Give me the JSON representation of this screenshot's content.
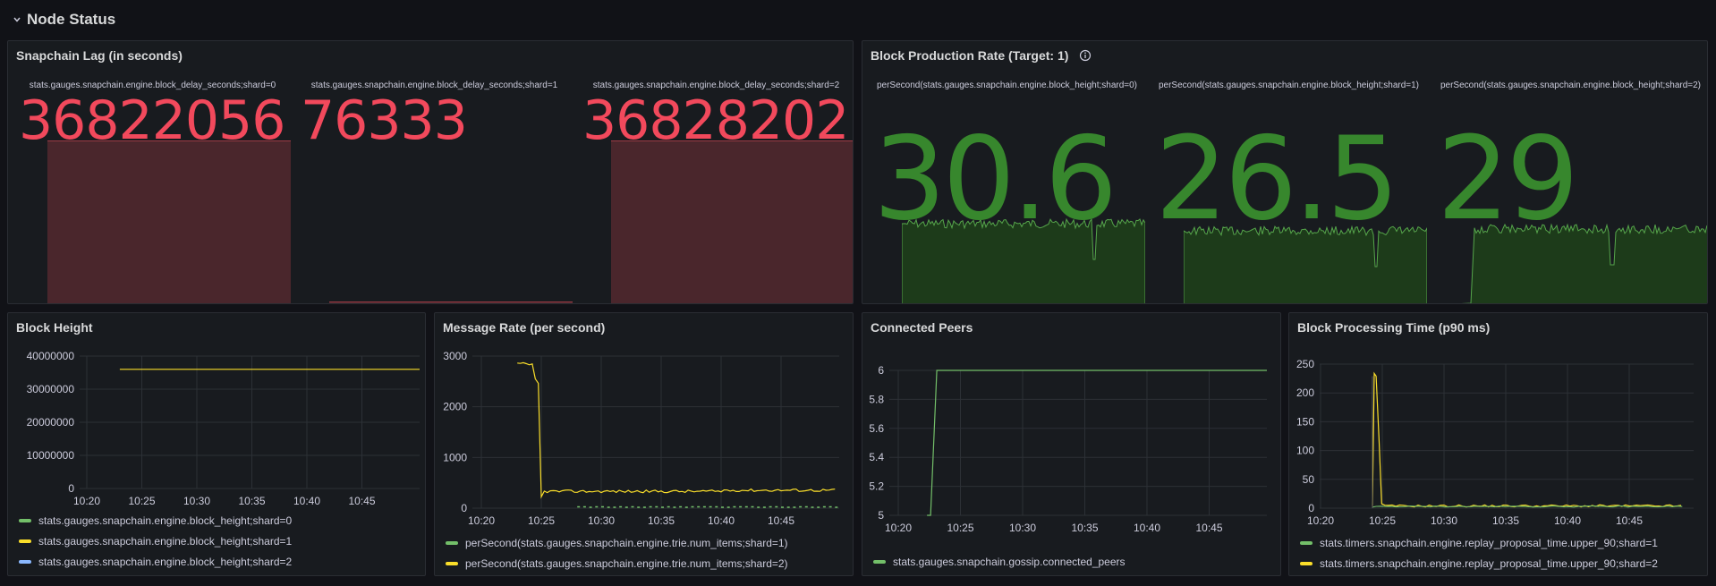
{
  "row": {
    "title": "Node Status"
  },
  "colors": {
    "red": "#f2495c",
    "green": "#73bf69",
    "dark_green": "#37872d",
    "yellow": "#fade2a",
    "blue": "#8ab8ff"
  },
  "lag_panel": {
    "title": "Snapchain Lag (in seconds)",
    "stats": [
      {
        "label": "stats.gauges.snapchain.engine.block_delay_seconds;shard=0",
        "value": "36822056",
        "fill": 1.0
      },
      {
        "label": "stats.gauges.snapchain.engine.block_delay_seconds;shard=1",
        "value": "76333",
        "fill": 0.002
      },
      {
        "label": "stats.gauges.snapchain.engine.block_delay_seconds;shard=2",
        "value": "36828202",
        "fill": 1.0
      }
    ]
  },
  "block_rate_panel": {
    "title": "Block Production Rate (Target: 1)",
    "info_icon": "info-icon",
    "stats": [
      {
        "label": "perSecond(stats.gauges.snapchain.engine.block_height;shard=0)",
        "value": "30.6"
      },
      {
        "label": "perSecond(stats.gauges.snapchain.engine.block_height;shard=1)",
        "value": "26.5"
      },
      {
        "label": "perSecond(stats.gauges.snapchain.engine.block_height;shard=2)",
        "value": "29"
      }
    ]
  },
  "block_height_panel": {
    "title": "Block Height",
    "chart_data": {
      "type": "line",
      "title": "Block Height",
      "yticks": [
        "40000000",
        "30000000",
        "20000000",
        "10000000",
        "0"
      ],
      "ylim": [
        0,
        40000000
      ],
      "xticks": [
        "10:20",
        "10:25",
        "10:30",
        "10:35",
        "10:40",
        "10:45"
      ],
      "series": [
        {
          "name": "stats.gauges.snapchain.engine.block_height;shard=0",
          "color": "#73bf69",
          "values": []
        },
        {
          "name": "stats.gauges.snapchain.engine.block_height;shard=1",
          "color": "#fade2a",
          "x_start": "10:23",
          "x_end": "10:50",
          "value": 36000000
        },
        {
          "name": "stats.gauges.snapchain.engine.block_height;shard=2",
          "color": "#8ab8ff",
          "values": []
        }
      ]
    }
  },
  "message_rate_panel": {
    "title": "Message Rate (per second)",
    "chart_data": {
      "type": "line",
      "title": "Message Rate (per second)",
      "yticks": [
        "3000",
        "2000",
        "1000",
        "0"
      ],
      "ylim": [
        0,
        3500
      ],
      "xticks": [
        "10:20",
        "10:25",
        "10:30",
        "10:35",
        "10:40",
        "10:45"
      ],
      "series": [
        {
          "name": "perSecond(stats.gauges.snapchain.engine.trie.num_items;shard=1)",
          "color": "#73bf69",
          "approx_value": 20
        },
        {
          "name": "perSecond(stats.gauges.snapchain.engine.trie.num_items;shard=2)",
          "color": "#fade2a",
          "start": 3150,
          "drop_at": "10:25",
          "after": 400
        }
      ]
    }
  },
  "peers_panel": {
    "title": "Connected Peers",
    "chart_data": {
      "type": "line",
      "title": "Connected Peers",
      "yticks": [
        "6",
        "5.8",
        "5.6",
        "5.4",
        "5.2",
        "5"
      ],
      "ylim": [
        5,
        6
      ],
      "xticks": [
        "10:20",
        "10:25",
        "10:30",
        "10:35",
        "10:40",
        "10:45"
      ],
      "series": [
        {
          "name": "stats.gauges.snapchain.gossip.connected_peers",
          "color": "#73bf69",
          "before": 5,
          "step_at": "10:23",
          "after": 6
        }
      ]
    }
  },
  "processing_panel": {
    "title": "Block Processing Time (p90 ms)",
    "chart_data": {
      "type": "line",
      "title": "Block Processing Time (p90 ms)",
      "yticks": [
        "250",
        "200",
        "150",
        "100",
        "50",
        "0"
      ],
      "ylim": [
        0,
        260
      ],
      "xticks": [
        "10:20",
        "10:25",
        "10:30",
        "10:35",
        "10:40",
        "10:45"
      ],
      "series": [
        {
          "name": "stats.timers.snapchain.engine.replay_proposal_time.upper_90;shard=1",
          "color": "#73bf69",
          "approx_value": 2
        },
        {
          "name": "stats.timers.snapchain.engine.replay_proposal_time.upper_90;shard=2",
          "color": "#fade2a",
          "peak": 245,
          "peak_at": "10:25",
          "after": 4
        }
      ]
    }
  }
}
